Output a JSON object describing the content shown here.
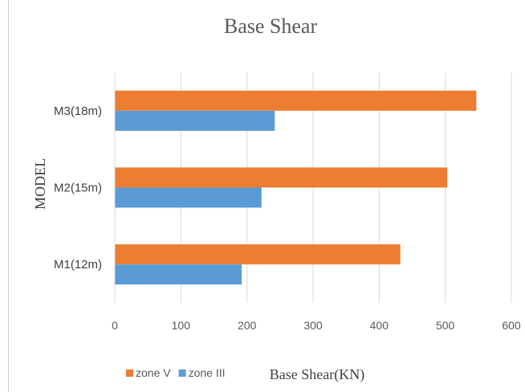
{
  "chart_data": {
    "type": "bar",
    "orientation": "horizontal",
    "title": "Base Shear",
    "xlabel": "Base Shear(KN)",
    "ylabel": "MODEL",
    "categories": [
      "M1(12m)",
      "M2(15m)",
      "M3(18m)"
    ],
    "series": [
      {
        "name": "zone V",
        "color": "#ed7d31",
        "values": [
          432,
          503,
          547
        ]
      },
      {
        "name": "zone III",
        "color": "#5b9bd5",
        "values": [
          192,
          222,
          242
        ]
      }
    ],
    "xlim": [
      0,
      600
    ],
    "xticks": [
      "0",
      "100",
      "200",
      "300",
      "400",
      "500",
      "600"
    ],
    "grid": true,
    "legend_position": "bottom-left"
  }
}
